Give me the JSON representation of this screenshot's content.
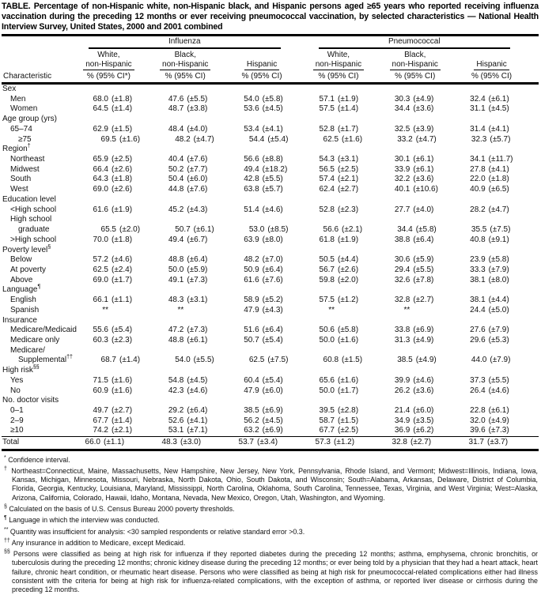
{
  "title": "TABLE. Percentage of non-Hispanic white, non-Hispanic black, and Hispanic persons aged ≥65 years who reported receiving influenza vaccination during the preceding 12 months or ever receiving pneumococcal vaccination, by selected characteristics — National Health Interview Survey, United States, 2000 and 2001 combined",
  "table": {
    "header": {
      "characteristic": "Characteristic",
      "groups": [
        {
          "label": "Influenza",
          "columns": [
            {
              "line1": "White,",
              "line2": "non-Hispanic",
              "measure": "% (95% CI*)"
            },
            {
              "line1": "Black,",
              "line2": "non-Hispanic",
              "measure": "% (95% CI)"
            },
            {
              "line1": "",
              "line2": "Hispanic",
              "measure": "% (95% CI)"
            }
          ]
        },
        {
          "label": "Pneumococcal",
          "columns": [
            {
              "line1": "White,",
              "line2": "non-Hispanic",
              "measure": "% (95% CI)"
            },
            {
              "line1": "Black,",
              "line2": "non-Hispanic",
              "measure": "% (95% CI)"
            },
            {
              "line1": "",
              "line2": "Hispanic",
              "measure": "% (95% CI)"
            }
          ]
        }
      ]
    },
    "rows": [
      {
        "type": "group",
        "label": "Sex"
      },
      {
        "type": "data",
        "label": "Men",
        "indent": 1,
        "values": [
          [
            "68.0",
            "(±1.8)"
          ],
          [
            "47.6",
            "(±5.5)"
          ],
          [
            "54.0",
            "(±5.8)"
          ],
          [
            "57.1",
            "(±1.9)"
          ],
          [
            "30.3",
            "(±4.9)"
          ],
          [
            "32.4",
            "(±6.1)"
          ]
        ]
      },
      {
        "type": "data",
        "label": "Women",
        "indent": 1,
        "values": [
          [
            "64.5",
            "(±1.4)"
          ],
          [
            "48.7",
            "(±3.8)"
          ],
          [
            "53.6",
            "(±4.5)"
          ],
          [
            "57.5",
            "(±1.4)"
          ],
          [
            "34.4",
            "(±3.6)"
          ],
          [
            "31.1",
            "(±4.5)"
          ]
        ]
      },
      {
        "type": "group",
        "label": "Age group (yrs)"
      },
      {
        "type": "data",
        "label": "65–74",
        "indent": 1,
        "values": [
          [
            "62.9",
            "(±1.5)"
          ],
          [
            "48.4",
            "(±4.0)"
          ],
          [
            "53.4",
            "(±4.1)"
          ],
          [
            "52.8",
            "(±1.7)"
          ],
          [
            "32.5",
            "(±3.9)"
          ],
          [
            "31.4",
            "(±4.1)"
          ]
        ]
      },
      {
        "type": "data",
        "label": "≥75",
        "indent": 2,
        "values": [
          [
            "69.5",
            "(±1.6)"
          ],
          [
            "48.2",
            "(±4.7)"
          ],
          [
            "54.4",
            "(±5.4)"
          ],
          [
            "62.5",
            "(±1.6)"
          ],
          [
            "33.2",
            "(±4.7)"
          ],
          [
            "32.3",
            "(±5.7)"
          ]
        ]
      },
      {
        "type": "group",
        "label": "Region",
        "sup": "†"
      },
      {
        "type": "data",
        "label": "Northeast",
        "indent": 1,
        "values": [
          [
            "65.9",
            "(±2.5)"
          ],
          [
            "40.4",
            "(±7.6)"
          ],
          [
            "56.6",
            "(±8.8)"
          ],
          [
            "54.3",
            "(±3.1)"
          ],
          [
            "30.1",
            "(±6.1)"
          ],
          [
            "34.1",
            "(±11.7)"
          ]
        ]
      },
      {
        "type": "data",
        "label": "Midwest",
        "indent": 1,
        "values": [
          [
            "66.4",
            "(±2.6)"
          ],
          [
            "50.2",
            "(±7.7)"
          ],
          [
            "49.4",
            "(±18.2)"
          ],
          [
            "56.5",
            "(±2.5)"
          ],
          [
            "33.9",
            "(±6.1)"
          ],
          [
            "27.8",
            "(±4.1)"
          ]
        ]
      },
      {
        "type": "data",
        "label": "South",
        "indent": 1,
        "values": [
          [
            "64.3",
            "(±1.8)"
          ],
          [
            "50.4",
            "(±6.0)"
          ],
          [
            "42.8",
            "(±5.5)"
          ],
          [
            "57.4",
            "(±2.1)"
          ],
          [
            "32.2",
            "(±3.6)"
          ],
          [
            "22.0",
            "(±1.8)"
          ]
        ]
      },
      {
        "type": "data",
        "label": "West",
        "indent": 1,
        "values": [
          [
            "69.0",
            "(±2.6)"
          ],
          [
            "44.8",
            "(±7.6)"
          ],
          [
            "63.8",
            "(±5.7)"
          ],
          [
            "62.4",
            "(±2.7)"
          ],
          [
            "40.1",
            "(±10.6)"
          ],
          [
            "40.9",
            "(±6.5)"
          ]
        ]
      },
      {
        "type": "group",
        "label": "Education level"
      },
      {
        "type": "data",
        "label": "<High school",
        "indent": 1,
        "values": [
          [
            "61.6",
            "(±1.9)"
          ],
          [
            "45.2",
            "(±4.3)"
          ],
          [
            "51.4",
            "(±4.6)"
          ],
          [
            "52.8",
            "(±2.3)"
          ],
          [
            "27.7",
            "(±4.0)"
          ],
          [
            "28.2",
            "(±4.7)"
          ]
        ]
      },
      {
        "type": "label",
        "label": "High school",
        "indent": 1
      },
      {
        "type": "data",
        "label": "graduate",
        "indent": 2,
        "values": [
          [
            "65.5",
            "(±2.0)"
          ],
          [
            "50.7",
            "(±6.1)"
          ],
          [
            "53.0",
            "(±8.5)"
          ],
          [
            "56.6",
            "(±2.1)"
          ],
          [
            "34.4",
            "(±5.8)"
          ],
          [
            "35.5",
            "(±7.5)"
          ]
        ]
      },
      {
        "type": "data",
        "label": ">High school",
        "indent": 1,
        "values": [
          [
            "70.0",
            "(±1.8)"
          ],
          [
            "49.4",
            "(±6.7)"
          ],
          [
            "63.9",
            "(±8.0)"
          ],
          [
            "61.8",
            "(±1.9)"
          ],
          [
            "38.8",
            "(±6.4)"
          ],
          [
            "40.8",
            "(±9.1)"
          ]
        ]
      },
      {
        "type": "group",
        "label": "Poverty level",
        "sup": "§"
      },
      {
        "type": "data",
        "label": "Below",
        "indent": 1,
        "values": [
          [
            "57.2",
            "(±4.6)"
          ],
          [
            "48.8",
            "(±6.4)"
          ],
          [
            "48.2",
            "(±7.0)"
          ],
          [
            "50.5",
            "(±4.4)"
          ],
          [
            "30.6",
            "(±5.9)"
          ],
          [
            "23.9",
            "(±5.8)"
          ]
        ]
      },
      {
        "type": "data",
        "label": "At poverty",
        "indent": 1,
        "values": [
          [
            "62.5",
            "(±2.4)"
          ],
          [
            "50.0",
            "(±5.9)"
          ],
          [
            "50.9",
            "(±6.4)"
          ],
          [
            "56.7",
            "(±2.6)"
          ],
          [
            "29.4",
            "(±5.5)"
          ],
          [
            "33.3",
            "(±7.9)"
          ]
        ]
      },
      {
        "type": "data",
        "label": "Above",
        "indent": 1,
        "values": [
          [
            "69.0",
            "(±1.7)"
          ],
          [
            "49.1",
            "(±7.3)"
          ],
          [
            "61.6",
            "(±7.6)"
          ],
          [
            "59.8",
            "(±2.0)"
          ],
          [
            "32.6",
            "(±7.8)"
          ],
          [
            "38.1",
            "(±8.0)"
          ]
        ]
      },
      {
        "type": "group",
        "label": "Language",
        "sup": "¶"
      },
      {
        "type": "data",
        "label": "English",
        "indent": 1,
        "values": [
          [
            "66.1",
            "(±1.1)"
          ],
          [
            "48.3",
            "(±3.1)"
          ],
          [
            "58.9",
            "(±5.2)"
          ],
          [
            "57.5",
            "(±1.2)"
          ],
          [
            "32.8",
            "(±2.7)"
          ],
          [
            "38.1",
            "(±4.4)"
          ]
        ]
      },
      {
        "type": "data",
        "label": "Spanish",
        "indent": 1,
        "values": [
          [
            "**",
            ""
          ],
          [
            "**",
            ""
          ],
          [
            "47.9",
            "(±4.3)"
          ],
          [
            "**",
            ""
          ],
          [
            "**",
            ""
          ],
          [
            "24.4",
            "(±5.0)"
          ]
        ]
      },
      {
        "type": "group",
        "label": "Insurance"
      },
      {
        "type": "data",
        "label": "Medicare/Medicaid",
        "indent": 1,
        "values": [
          [
            "55.6",
            "(±5.4)"
          ],
          [
            "47.2",
            "(±7.3)"
          ],
          [
            "51.6",
            "(±6.4)"
          ],
          [
            "50.6",
            "(±5.8)"
          ],
          [
            "33.8",
            "(±6.9)"
          ],
          [
            "27.6",
            "(±7.9)"
          ]
        ]
      },
      {
        "type": "data",
        "label": "Medicare only",
        "indent": 1,
        "values": [
          [
            "60.3",
            "(±2.3)"
          ],
          [
            "48.8",
            "(±6.1)"
          ],
          [
            "50.7",
            "(±5.4)"
          ],
          [
            "50.0",
            "(±1.6)"
          ],
          [
            "31.3",
            "(±4.9)"
          ],
          [
            "29.6",
            "(±5.3)"
          ]
        ]
      },
      {
        "type": "label",
        "label": "Medicare/",
        "indent": 1
      },
      {
        "type": "data",
        "label": "Supplemental",
        "sup": "††",
        "indent": 2,
        "values": [
          [
            "68.7",
            "(±1.4)"
          ],
          [
            "54.0",
            "(±5.5)"
          ],
          [
            "62.5",
            "(±7.5)"
          ],
          [
            "60.8",
            "(±1.5)"
          ],
          [
            "38.5",
            "(±4.9)"
          ],
          [
            "44.0",
            "(±7.9)"
          ]
        ]
      },
      {
        "type": "group",
        "label": "High risk",
        "sup": "§§"
      },
      {
        "type": "data",
        "label": "Yes",
        "indent": 1,
        "values": [
          [
            "71.5",
            "(±1.6)"
          ],
          [
            "54.8",
            "(±4.5)"
          ],
          [
            "60.4",
            "(±5.4)"
          ],
          [
            "65.6",
            "(±1.6)"
          ],
          [
            "39.9",
            "(±4.6)"
          ],
          [
            "37.3",
            "(±5.5)"
          ]
        ]
      },
      {
        "type": "data",
        "label": "No",
        "indent": 1,
        "values": [
          [
            "60.9",
            "(±1.6)"
          ],
          [
            "42.3",
            "(±4.6)"
          ],
          [
            "47.9",
            "(±6.0)"
          ],
          [
            "50.0",
            "(±1.7)"
          ],
          [
            "26.2",
            "(±3.6)"
          ],
          [
            "26.4",
            "(±4.6)"
          ]
        ]
      },
      {
        "type": "group",
        "label": "No. doctor visits"
      },
      {
        "type": "data",
        "label": "0–1",
        "indent": 1,
        "values": [
          [
            "49.7",
            "(±2.7)"
          ],
          [
            "29.2",
            "(±6.4)"
          ],
          [
            "38.5",
            "(±6.9)"
          ],
          [
            "39.5",
            "(±2.8)"
          ],
          [
            "21.4",
            "(±6.0)"
          ],
          [
            "22.8",
            "(±6.1)"
          ]
        ]
      },
      {
        "type": "data",
        "label": "2–9",
        "indent": 1,
        "values": [
          [
            "67.7",
            "(±1.4)"
          ],
          [
            "52.6",
            "(±4.1)"
          ],
          [
            "56.2",
            "(±4.5)"
          ],
          [
            "58.7",
            "(±1.5)"
          ],
          [
            "34.9",
            "(±3.5)"
          ],
          [
            "32.0",
            "(±4.9)"
          ]
        ]
      },
      {
        "type": "data",
        "label": "≥10",
        "indent": 1,
        "values": [
          [
            "74.2",
            "(±2.1)"
          ],
          [
            "53.1",
            "(±7.1)"
          ],
          [
            "63.2",
            "(±6.9)"
          ],
          [
            "67.7",
            "(±2.5)"
          ],
          [
            "36.9",
            "(±6.2)"
          ],
          [
            "39.6",
            "(±7.3)"
          ]
        ]
      },
      {
        "type": "total",
        "label": "Total",
        "indent": 0,
        "values": [
          [
            "66.0",
            "(±1.1)"
          ],
          [
            "48.3",
            "(±3.0)"
          ],
          [
            "53.7",
            "(±3.4)"
          ],
          [
            "57.3",
            "(±1.2)"
          ],
          [
            "32.8",
            "(±2.7)"
          ],
          [
            "31.7",
            "(±3.7)"
          ]
        ]
      }
    ]
  },
  "footnotes": [
    {
      "marker": "*",
      "text": "Confidence interval."
    },
    {
      "marker": "†",
      "text": "Northeast=Connecticut, Maine, Massachusetts, New Hampshire, New Jersey, New York, Pennsylvania, Rhode Island, and Vermont; Midwest=Illinois, Indiana, Iowa, Kansas, Michigan, Minnesota, Missouri, Nebraska, North Dakota, Ohio, South Dakota, and Wisconsin; South=Alabama, Arkansas, Delaware, District of Columbia, Florida, Georgia, Kentucky, Louisiana, Maryland, Mississippi, North Carolina, Oklahoma, South Carolina, Tennessee, Texas, Virginia, and West Virginia; West=Alaska, Arizona, California, Colorado, Hawaii, Idaho, Montana, Nevada, New Mexico, Oregon, Utah, Washington, and Wyoming."
    },
    {
      "marker": "§",
      "text": "Calculated on the basis of U.S. Census Bureau 2000 poverty thresholds."
    },
    {
      "marker": "¶",
      "text": "Language in which the interview was conducted."
    },
    {
      "marker": "**",
      "text": "Quantity was insufficient for analysis: <30 sampled respondents or relative standard error >0.3."
    },
    {
      "marker": "††",
      "text": "Any insurance in addition to Medicare, except Medicaid."
    },
    {
      "marker": "§§",
      "text": "Persons were classified as being at high risk for influenza if they reported diabetes during the preceding 12 months; asthma, emphysema, chronic bronchitis, or tuberculosis during the preceding 12 months; chronic kidney disease during the preceding 12 months; or ever being told by a physician that they had a heart attack, heart failure, chronic heart condition, or rheumatic heart disease. Persons who were classified as being at high risk for pneumococcal-related complications either had illness consistent with the criteria for being at high risk for influenza-related complications, with the exception of asthma, or reported liver disease or cirrhosis during the preceding 12 months."
    }
  ]
}
